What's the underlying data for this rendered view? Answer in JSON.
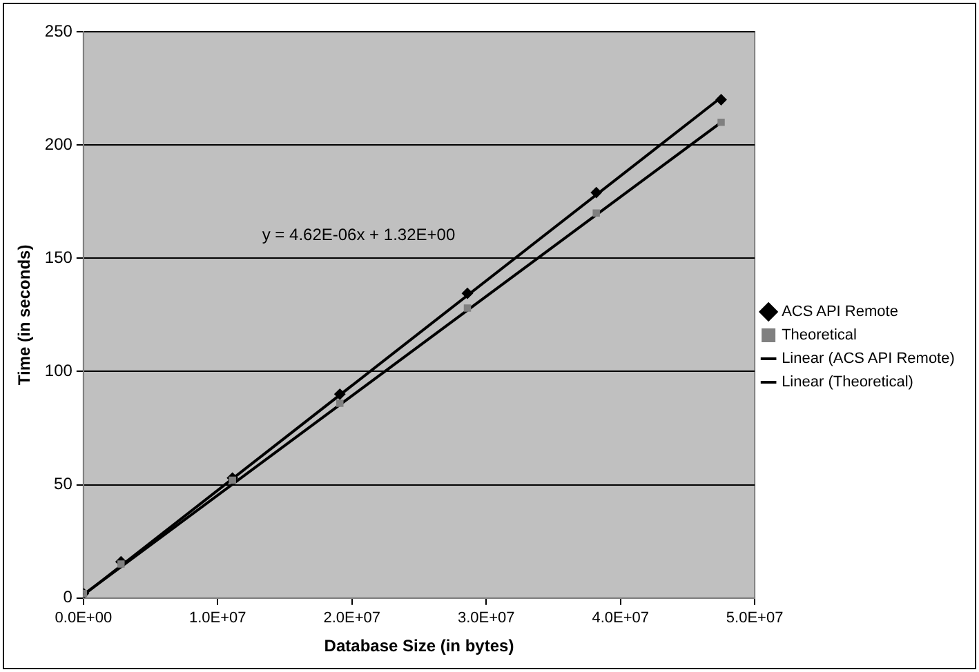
{
  "chart_data": {
    "type": "scatter",
    "xlabel": "Database Size (in bytes)",
    "ylabel": "Time (in seconds)",
    "xlim": [
      0,
      50000000
    ],
    "xticks": [
      {
        "value": 0,
        "label": "0.0E+00"
      },
      {
        "value": 10000000,
        "label": "1.0E+07"
      },
      {
        "value": 20000000,
        "label": "2.0E+07"
      },
      {
        "value": 30000000,
        "label": "3.0E+07"
      },
      {
        "value": 40000000,
        "label": "4.0E+07"
      },
      {
        "value": 50000000,
        "label": "5.0E+07"
      }
    ],
    "ylim": [
      0,
      250
    ],
    "yticks": [
      0,
      50,
      100,
      150,
      200,
      250
    ],
    "grid": "y",
    "legend": "right",
    "annotations": [
      "y = 4.62E-06x + 1.32E+00"
    ],
    "series": [
      {
        "name": "ACS API Remote",
        "type": "scatter",
        "marker": "diamond",
        "color": "#000000",
        "x": [
          0,
          2800000,
          11100000,
          19100000,
          28600000,
          38200000,
          47500000
        ],
        "values": [
          2,
          16,
          53,
          90,
          134.5,
          179,
          220
        ]
      },
      {
        "name": "Theoretical",
        "type": "scatter",
        "marker": "square",
        "color": "#808080",
        "x": [
          0,
          2800000,
          11100000,
          19100000,
          28600000,
          38200000,
          47500000
        ],
        "values": [
          2,
          15,
          52,
          86,
          128,
          170,
          210
        ]
      },
      {
        "name": "Linear (ACS API Remote)",
        "type": "line",
        "marker": "none",
        "line_style": "solid",
        "color": "#000000",
        "x": [
          0,
          47500000
        ],
        "values": [
          1.3,
          221
        ]
      },
      {
        "name": "Linear (Theoretical)",
        "type": "line",
        "marker": "none",
        "line_style": "solid",
        "color": "#000000",
        "x": [
          0,
          47500000
        ],
        "values": [
          1.5,
          210
        ]
      }
    ]
  }
}
